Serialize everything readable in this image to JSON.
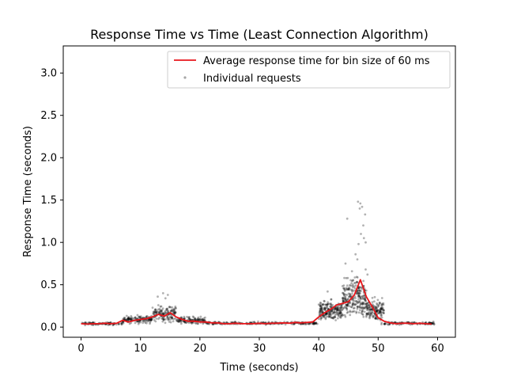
{
  "chart_data": {
    "type": "scatter",
    "title": "Response Time vs Time (Least Connection Algorithm)",
    "xlabel": "Time (seconds)",
    "ylabel": "Response Time (seconds)",
    "xlim": [
      -3,
      63
    ],
    "ylim": [
      -0.12,
      3.32
    ],
    "xticks": [
      0,
      10,
      20,
      30,
      40,
      50,
      60
    ],
    "yticks": [
      0.0,
      0.5,
      1.0,
      1.5,
      2.0,
      2.5,
      3.0
    ],
    "xtick_labels": [
      "0",
      "10",
      "20",
      "30",
      "40",
      "50",
      "60"
    ],
    "ytick_labels": [
      "0.0",
      "0.5",
      "1.0",
      "1.5",
      "2.0",
      "2.5",
      "3.0"
    ],
    "legend_placement": "upper-right",
    "grid": false,
    "series": [
      {
        "name": "Average response time for bin size of 60 ms",
        "kind": "line",
        "color": "#e8161b",
        "x": [
          0,
          1,
          2,
          3,
          4,
          5,
          6,
          7,
          8,
          9,
          10,
          11,
          12,
          13,
          14,
          15,
          16,
          17,
          18,
          19,
          20,
          21,
          22,
          23,
          24,
          25,
          26,
          27,
          28,
          29,
          30,
          31,
          32,
          33,
          34,
          35,
          36,
          37,
          38,
          39,
          40,
          41,
          42,
          43,
          44,
          45,
          46,
          47,
          48,
          49,
          50,
          51,
          52,
          53,
          54,
          55,
          56,
          57,
          58,
          59
        ],
        "y": [
          0.04,
          0.035,
          0.04,
          0.04,
          0.045,
          0.04,
          0.045,
          0.08,
          0.06,
          0.08,
          0.09,
          0.1,
          0.12,
          0.15,
          0.13,
          0.17,
          0.12,
          0.09,
          0.07,
          0.07,
          0.06,
          0.06,
          0.05,
          0.05,
          0.04,
          0.04,
          0.045,
          0.04,
          0.04,
          0.04,
          0.045,
          0.04,
          0.045,
          0.045,
          0.05,
          0.045,
          0.055,
          0.05,
          0.055,
          0.06,
          0.12,
          0.17,
          0.21,
          0.26,
          0.28,
          0.3,
          0.38,
          0.56,
          0.36,
          0.24,
          0.11,
          0.07,
          0.05,
          0.04,
          0.045,
          0.045,
          0.04,
          0.045,
          0.04,
          0.035
        ]
      },
      {
        "name": "Individual requests",
        "kind": "scatter",
        "color": "#000000",
        "opacity": 0.3,
        "clusters": [
          {
            "x_range": [
              0,
              7
            ],
            "y_base": 0.04,
            "y_spread": 0.015,
            "count": 90
          },
          {
            "x_range": [
              7,
              12
            ],
            "y_base": 0.09,
            "y_spread": 0.04,
            "count": 150
          },
          {
            "x_range": [
              12,
              16
            ],
            "y_base": 0.16,
            "y_spread": 0.08,
            "count": 150
          },
          {
            "x_range": [
              16,
              21
            ],
            "y_base": 0.08,
            "y_spread": 0.035,
            "count": 130
          },
          {
            "x_range": [
              21,
              40
            ],
            "y_base": 0.045,
            "y_spread": 0.015,
            "count": 220
          },
          {
            "x_range": [
              40,
              44
            ],
            "y_base": 0.19,
            "y_spread": 0.1,
            "count": 220
          },
          {
            "x_range": [
              44,
              48
            ],
            "y_base": 0.35,
            "y_spread": 0.2,
            "count": 260
          },
          {
            "x_range": [
              48,
              51
            ],
            "y_base": 0.2,
            "y_spread": 0.12,
            "count": 160
          },
          {
            "x_range": [
              51,
              59.5
            ],
            "y_base": 0.045,
            "y_spread": 0.015,
            "count": 110
          }
        ],
        "outliers": [
          {
            "x": 46.6,
            "y": 1.48
          },
          {
            "x": 47.0,
            "y": 1.46
          },
          {
            "x": 47.3,
            "y": 1.42
          },
          {
            "x": 46.9,
            "y": 1.4
          },
          {
            "x": 44.8,
            "y": 1.28
          },
          {
            "x": 47.8,
            "y": 1.33
          },
          {
            "x": 47.5,
            "y": 1.2
          },
          {
            "x": 47.1,
            "y": 1.1
          },
          {
            "x": 47.6,
            "y": 1.05
          },
          {
            "x": 46.7,
            "y": 0.98
          },
          {
            "x": 47.9,
            "y": 1.0
          },
          {
            "x": 46.2,
            "y": 0.86
          },
          {
            "x": 44.5,
            "y": 0.75
          },
          {
            "x": 46.5,
            "y": 0.8
          },
          {
            "x": 47.9,
            "y": 0.68
          },
          {
            "x": 45.6,
            "y": 0.66
          },
          {
            "x": 44.3,
            "y": 0.58
          },
          {
            "x": 48.2,
            "y": 0.62
          },
          {
            "x": 13.8,
            "y": 0.4
          },
          {
            "x": 14.6,
            "y": 0.38
          },
          {
            "x": 12.9,
            "y": 0.36
          },
          {
            "x": 14.2,
            "y": 0.34
          },
          {
            "x": 41.5,
            "y": 0.42
          }
        ]
      }
    ]
  }
}
